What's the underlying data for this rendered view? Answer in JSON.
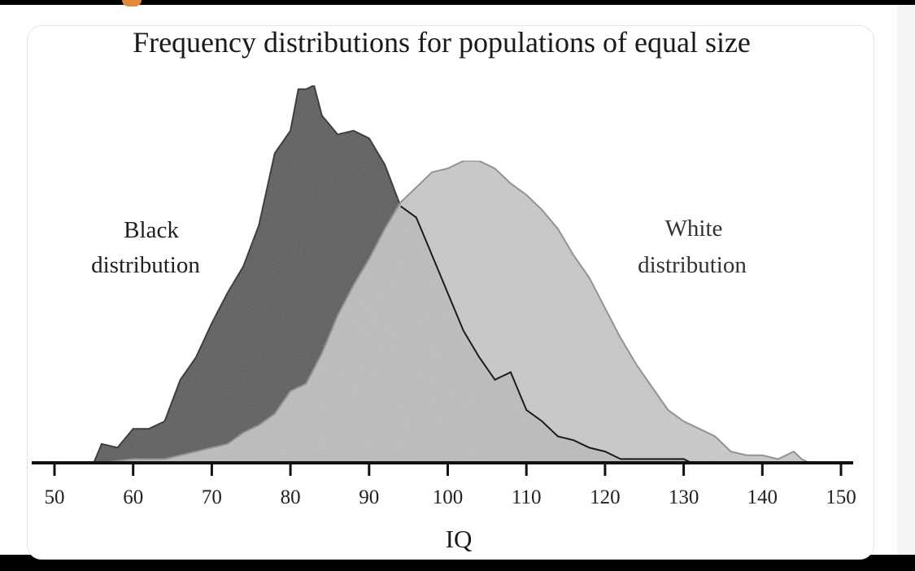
{
  "chart_data": {
    "type": "area",
    "title": "Frequency distributions for populations of equal size",
    "xlabel": "IQ",
    "ylabel": "",
    "xlim": [
      50,
      150
    ],
    "ylim": [
      0,
      1
    ],
    "x_ticks": [
      50,
      60,
      70,
      80,
      90,
      100,
      110,
      120,
      130,
      140,
      150
    ],
    "x_tick_labels": [
      "50",
      "60",
      "70",
      "80",
      "90",
      "100",
      "110",
      "120",
      "130",
      "140",
      "150"
    ],
    "grid": false,
    "legend": "none",
    "annotations": [
      {
        "lines": [
          "Black",
          "distribution"
        ],
        "series": 0
      },
      {
        "lines": [
          "White",
          "distribution"
        ],
        "series": 1
      }
    ],
    "series": [
      {
        "name": "Black distribution",
        "color": "#5a5a5a",
        "points": [
          [
            55,
            0
          ],
          [
            56,
            0.05
          ],
          [
            58,
            0.04
          ],
          [
            60,
            0.09
          ],
          [
            62,
            0.09
          ],
          [
            64,
            0.11
          ],
          [
            66,
            0.22
          ],
          [
            68,
            0.28
          ],
          [
            70,
            0.37
          ],
          [
            72,
            0.45
          ],
          [
            74,
            0.52
          ],
          [
            76,
            0.63
          ],
          [
            78,
            0.82
          ],
          [
            80,
            0.88
          ],
          [
            81,
            0.99
          ],
          [
            82,
            0.99
          ],
          [
            83,
            1.0
          ],
          [
            84,
            0.92
          ],
          [
            86,
            0.87
          ],
          [
            88,
            0.88
          ],
          [
            90,
            0.86
          ],
          [
            92,
            0.79
          ],
          [
            94,
            0.68
          ],
          [
            96,
            0.65
          ],
          [
            98,
            0.55
          ],
          [
            100,
            0.45
          ],
          [
            102,
            0.35
          ],
          [
            104,
            0.28
          ],
          [
            106,
            0.22
          ],
          [
            108,
            0.24
          ],
          [
            110,
            0.14
          ],
          [
            112,
            0.11
          ],
          [
            114,
            0.07
          ],
          [
            116,
            0.06
          ],
          [
            118,
            0.04
          ],
          [
            120,
            0.03
          ],
          [
            122,
            0.01
          ],
          [
            124,
            0.01
          ],
          [
            126,
            0.01
          ],
          [
            128,
            0.01
          ],
          [
            130,
            0.01
          ],
          [
            131,
            0
          ]
        ]
      },
      {
        "name": "White distribution",
        "color": "#c4c4c4",
        "points": [
          [
            56,
            0
          ],
          [
            60,
            0.01
          ],
          [
            64,
            0.01
          ],
          [
            66,
            0.02
          ],
          [
            68,
            0.03
          ],
          [
            70,
            0.04
          ],
          [
            72,
            0.05
          ],
          [
            74,
            0.08
          ],
          [
            76,
            0.1
          ],
          [
            78,
            0.13
          ],
          [
            80,
            0.19
          ],
          [
            82,
            0.21
          ],
          [
            84,
            0.29
          ],
          [
            86,
            0.39
          ],
          [
            88,
            0.47
          ],
          [
            90,
            0.54
          ],
          [
            92,
            0.62
          ],
          [
            94,
            0.69
          ],
          [
            96,
            0.73
          ],
          [
            98,
            0.77
          ],
          [
            100,
            0.78
          ],
          [
            102,
            0.8
          ],
          [
            104,
            0.8
          ],
          [
            106,
            0.78
          ],
          [
            108,
            0.74
          ],
          [
            110,
            0.71
          ],
          [
            112,
            0.67
          ],
          [
            114,
            0.62
          ],
          [
            116,
            0.55
          ],
          [
            118,
            0.49
          ],
          [
            120,
            0.41
          ],
          [
            122,
            0.33
          ],
          [
            124,
            0.26
          ],
          [
            126,
            0.2
          ],
          [
            128,
            0.14
          ],
          [
            130,
            0.11
          ],
          [
            132,
            0.09
          ],
          [
            134,
            0.07
          ],
          [
            136,
            0.03
          ],
          [
            138,
            0.02
          ],
          [
            140,
            0.02
          ],
          [
            142,
            0.01
          ],
          [
            144,
            0.03
          ],
          [
            145,
            0.01
          ],
          [
            146,
            0
          ]
        ]
      }
    ]
  }
}
